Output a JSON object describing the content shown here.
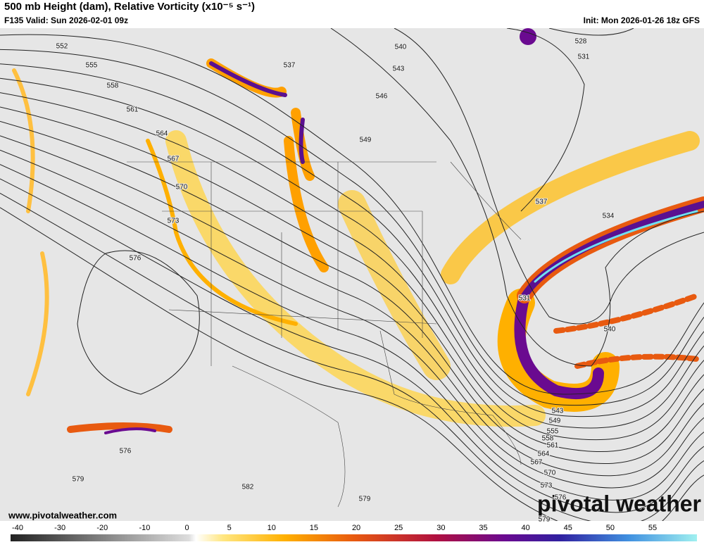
{
  "header": {
    "title": "500 mb Height (dam), Relative Vorticity (x10⁻⁵ s⁻¹)",
    "valid": "F135 Valid: Sun 2026-02-01 09z",
    "init": "Init: Mon 2026-01-26 18z GFS"
  },
  "contour_labels": [
    552,
    555,
    558,
    561,
    564,
    567,
    570,
    573,
    576,
    537,
    540,
    543,
    546,
    549,
    528,
    531,
    537,
    534,
    531,
    540,
    543,
    549,
    555,
    558,
    561,
    564,
    567,
    570,
    573,
    576,
    579,
    579,
    576,
    582,
    579
  ],
  "colorbar": {
    "ticks": [
      -40,
      -30,
      -20,
      -10,
      0,
      5,
      10,
      15,
      20,
      25,
      30,
      35,
      40,
      45,
      50,
      55
    ]
  },
  "footer": {
    "website": "www.pivotalweather.com",
    "logo": "pivotal weather"
  }
}
